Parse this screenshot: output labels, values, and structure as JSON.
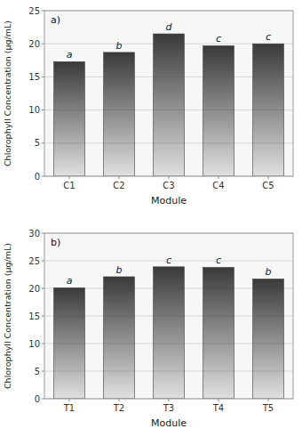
{
  "chart_data": [
    {
      "type": "bar",
      "title": "a)",
      "categories": [
        "C1",
        "C2",
        "C3",
        "C4",
        "C5"
      ],
      "values": [
        17.3,
        18.7,
        21.5,
        19.7,
        20.0
      ],
      "annotations": [
        "a",
        "b",
        "d",
        "c",
        "c"
      ],
      "xlabel": "Module",
      "ylabel": "Chlorophyll Concentration (µg/mL)",
      "ylim": [
        0,
        25
      ],
      "yticks": [
        0,
        5,
        10,
        15,
        20,
        25
      ],
      "grid": true,
      "color": "#3a3a3a"
    },
    {
      "type": "bar",
      "title": "b)",
      "categories": [
        "T1",
        "T2",
        "T3",
        "T4",
        "T5"
      ],
      "values": [
        20.1,
        22.1,
        23.9,
        23.8,
        21.7
      ],
      "annotations": [
        "a",
        "b",
        "c",
        "c",
        "b"
      ],
      "xlabel": "Module",
      "ylabel": "Chlorophyll Concentration (µg/mL)",
      "ylim": [
        0,
        30
      ],
      "yticks": [
        0,
        5,
        10,
        15,
        20,
        25,
        30
      ],
      "grid": true,
      "color": "#3a3a3a"
    }
  ]
}
